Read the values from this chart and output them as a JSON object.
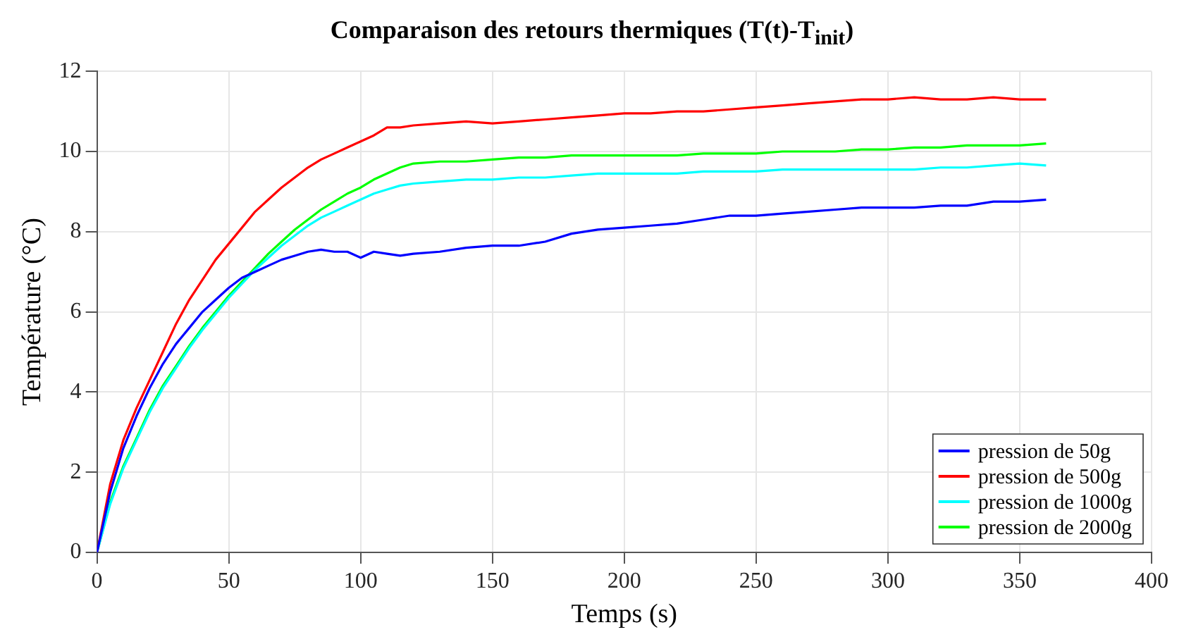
{
  "chart_data": {
    "type": "line",
    "title": "Comparaison des retours thermiques (T(t)-T$_{init}$)",
    "xlabel": "Temps (s)",
    "ylabel": "Température (°C)",
    "x": [
      0,
      5,
      10,
      15,
      20,
      25,
      30,
      35,
      40,
      45,
      50,
      55,
      60,
      65,
      70,
      75,
      80,
      85,
      90,
      95,
      100,
      105,
      110,
      115,
      120,
      130,
      140,
      150,
      160,
      170,
      180,
      190,
      200,
      210,
      220,
      230,
      240,
      250,
      260,
      270,
      280,
      290,
      300,
      310,
      320,
      330,
      340,
      350,
      360
    ],
    "series": [
      {
        "name": "pression de 50g",
        "color": "#0000ff",
        "values": [
          0,
          1.5,
          2.6,
          3.4,
          4.1,
          4.7,
          5.2,
          5.6,
          6.0,
          6.3,
          6.6,
          6.85,
          7.0,
          7.15,
          7.3,
          7.4,
          7.5,
          7.55,
          7.5,
          7.5,
          7.35,
          7.5,
          7.45,
          7.4,
          7.45,
          7.5,
          7.6,
          7.65,
          7.65,
          7.75,
          7.95,
          8.05,
          8.1,
          8.15,
          8.2,
          8.3,
          8.4,
          8.4,
          8.45,
          8.5,
          8.55,
          8.6,
          8.6,
          8.6,
          8.65,
          8.65,
          8.75,
          8.75,
          8.8
        ]
      },
      {
        "name": "pression de 500g",
        "color": "#ff0000",
        "values": [
          0,
          1.7,
          2.8,
          3.6,
          4.3,
          5.0,
          5.7,
          6.3,
          6.8,
          7.3,
          7.7,
          8.1,
          8.5,
          8.8,
          9.1,
          9.35,
          9.6,
          9.8,
          9.95,
          10.1,
          10.25,
          10.4,
          10.6,
          10.6,
          10.65,
          10.7,
          10.75,
          10.7,
          10.75,
          10.8,
          10.85,
          10.9,
          10.95,
          10.95,
          11.0,
          11.0,
          11.05,
          11.1,
          11.15,
          11.2,
          11.25,
          11.3,
          11.3,
          11.35,
          11.3,
          11.3,
          11.35,
          11.3,
          11.3
        ]
      },
      {
        "name": "pression de 1000g",
        "color": "#00ffff",
        "values": [
          0,
          1.2,
          2.1,
          2.8,
          3.5,
          4.1,
          4.6,
          5.1,
          5.55,
          5.95,
          6.35,
          6.7,
          7.05,
          7.35,
          7.65,
          7.9,
          8.15,
          8.35,
          8.5,
          8.65,
          8.8,
          8.95,
          9.05,
          9.15,
          9.2,
          9.25,
          9.3,
          9.3,
          9.35,
          9.35,
          9.4,
          9.45,
          9.45,
          9.45,
          9.45,
          9.5,
          9.5,
          9.5,
          9.55,
          9.55,
          9.55,
          9.55,
          9.55,
          9.55,
          9.6,
          9.6,
          9.65,
          9.7,
          9.65
        ]
      },
      {
        "name": "pression de 2000g",
        "color": "#00ff00",
        "values": [
          0,
          1.25,
          2.15,
          2.85,
          3.56,
          4.16,
          4.65,
          5.15,
          5.6,
          6.0,
          6.4,
          6.75,
          7.1,
          7.45,
          7.75,
          8.05,
          8.3,
          8.55,
          8.75,
          8.95,
          9.1,
          9.3,
          9.45,
          9.6,
          9.7,
          9.75,
          9.75,
          9.8,
          9.85,
          9.85,
          9.9,
          9.9,
          9.9,
          9.9,
          9.9,
          9.95,
          9.95,
          9.95,
          10.0,
          10.0,
          10.0,
          10.05,
          10.05,
          10.1,
          10.1,
          10.15,
          10.15,
          10.15,
          10.2
        ]
      }
    ],
    "xlim": [
      0,
      400
    ],
    "xticks": [
      0,
      50,
      100,
      150,
      200,
      250,
      300,
      350,
      400
    ],
    "ylim": [
      0,
      12
    ],
    "yticks": [
      0,
      2,
      4,
      6,
      8,
      10,
      12
    ],
    "grid": true,
    "legend": "bottom right",
    "marker": "none",
    "line_style": "solid"
  }
}
